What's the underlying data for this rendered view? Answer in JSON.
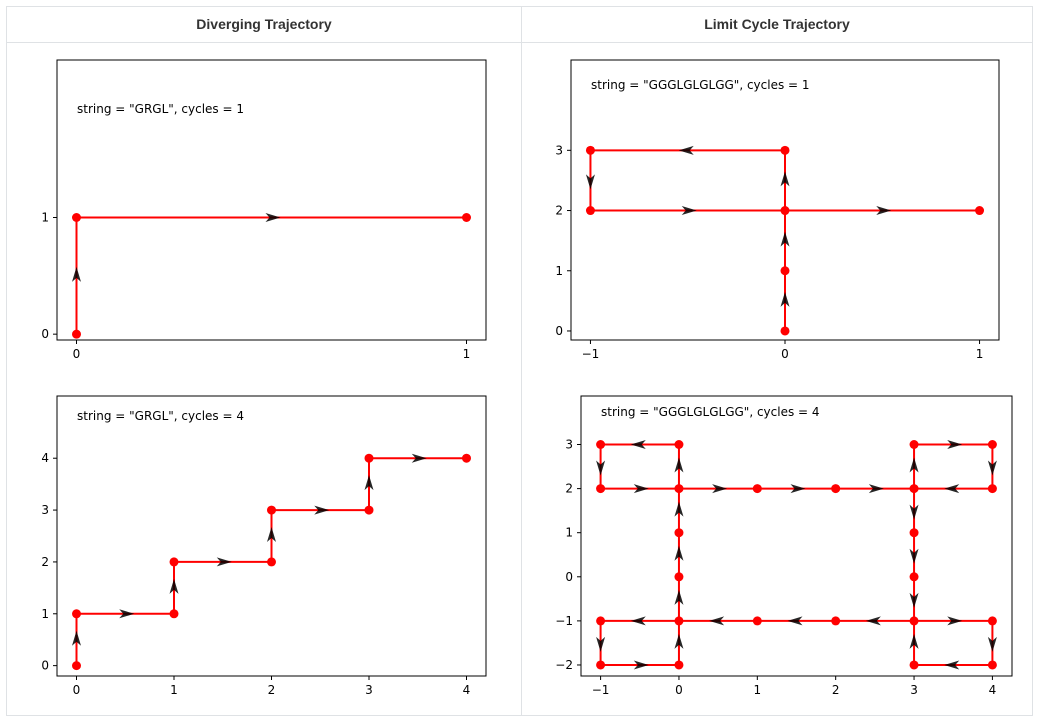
{
  "table": {
    "headers": [
      "Diverging Trajectory",
      "Limit Cycle Trajectory"
    ]
  },
  "colors": {
    "path": "#ff0000",
    "arrow": "#000000"
  },
  "chart_data": [
    {
      "type": "line",
      "annotation": "string = \"GRGL\", cycles = 1",
      "xlabel": "",
      "ylabel": "",
      "xticks": [
        0,
        1
      ],
      "yticks": [
        0,
        1
      ],
      "xlim": [
        -0.05,
        1.05
      ],
      "ylim": [
        -0.05,
        2.35
      ],
      "points": [
        [
          0,
          0
        ],
        [
          0,
          1
        ],
        [
          1,
          1
        ]
      ],
      "arrows": [
        [
          0,
          0,
          0,
          1
        ],
        [
          0,
          1,
          1,
          1
        ]
      ]
    },
    {
      "type": "line",
      "annotation": "string = \"GGGLGLGLGG\", cycles = 1",
      "xlabel": "",
      "ylabel": "",
      "xticks": [
        -1,
        0,
        1
      ],
      "yticks": [
        0,
        1,
        2,
        3
      ],
      "xlim": [
        -1.1,
        1.1
      ],
      "ylim": [
        -0.15,
        4.5
      ],
      "points": [
        [
          0,
          0
        ],
        [
          0,
          1
        ],
        [
          0,
          2
        ],
        [
          0,
          3
        ],
        [
          -1,
          3
        ],
        [
          -1,
          2
        ],
        [
          0,
          2
        ],
        [
          1,
          2
        ]
      ],
      "arrows": [
        [
          0,
          0,
          0,
          1
        ],
        [
          0,
          1,
          0,
          2
        ],
        [
          0,
          2,
          0,
          3
        ],
        [
          0,
          3,
          -1,
          3
        ],
        [
          -1,
          3,
          -1,
          2
        ],
        [
          -1,
          2,
          0,
          2
        ],
        [
          0,
          2,
          1,
          2
        ]
      ]
    },
    {
      "type": "line",
      "annotation": "string = \"GRGL\", cycles = 4",
      "xlabel": "",
      "ylabel": "",
      "xticks": [
        0,
        1,
        2,
        3,
        4
      ],
      "yticks": [
        0,
        1,
        2,
        3,
        4
      ],
      "xlim": [
        -0.2,
        4.2
      ],
      "ylim": [
        -0.2,
        5.2
      ],
      "points": [
        [
          0,
          0
        ],
        [
          0,
          1
        ],
        [
          1,
          1
        ],
        [
          1,
          2
        ],
        [
          2,
          2
        ],
        [
          2,
          3
        ],
        [
          3,
          3
        ],
        [
          3,
          4
        ],
        [
          4,
          4
        ]
      ],
      "arrows": [
        [
          0,
          0,
          0,
          1
        ],
        [
          0,
          1,
          1,
          1
        ],
        [
          1,
          1,
          1,
          2
        ],
        [
          1,
          2,
          2,
          2
        ],
        [
          2,
          2,
          2,
          3
        ],
        [
          2,
          3,
          3,
          3
        ],
        [
          3,
          3,
          3,
          4
        ],
        [
          3,
          4,
          4,
          4
        ]
      ]
    },
    {
      "type": "line",
      "annotation": "string = \"GGGLGLGLGG\", cycles = 4",
      "xlabel": "",
      "ylabel": "",
      "xticks": [
        -1,
        0,
        1,
        2,
        3,
        4
      ],
      "yticks": [
        -2,
        -1,
        0,
        1,
        2,
        3
      ],
      "xlim": [
        -1.25,
        4.25
      ],
      "ylim": [
        -2.25,
        4.1
      ],
      "points": [
        [
          0,
          0
        ],
        [
          0,
          1
        ],
        [
          0,
          2
        ],
        [
          0,
          3
        ],
        [
          -1,
          3
        ],
        [
          -1,
          2
        ],
        [
          0,
          2
        ],
        [
          1,
          2
        ],
        [
          2,
          2
        ],
        [
          3,
          2
        ],
        [
          3,
          3
        ],
        [
          4,
          3
        ],
        [
          4,
          2
        ],
        [
          3,
          2
        ],
        [
          3,
          1
        ],
        [
          3,
          0
        ],
        [
          3,
          -1
        ],
        [
          4,
          -1
        ],
        [
          4,
          -2
        ],
        [
          3,
          -2
        ],
        [
          3,
          -1
        ],
        [
          2,
          -1
        ],
        [
          1,
          -1
        ],
        [
          0,
          -1
        ],
        [
          -1,
          -1
        ],
        [
          -1,
          -2
        ],
        [
          0,
          -2
        ],
        [
          0,
          -1
        ],
        [
          0,
          0
        ]
      ],
      "arrows": [
        [
          0,
          0,
          0,
          1
        ],
        [
          0,
          1,
          0,
          2
        ],
        [
          0,
          2,
          0,
          3
        ],
        [
          0,
          3,
          -1,
          3
        ],
        [
          -1,
          3,
          -1,
          2
        ],
        [
          -1,
          2,
          0,
          2
        ],
        [
          0,
          2,
          1,
          2
        ],
        [
          1,
          2,
          2,
          2
        ],
        [
          2,
          2,
          3,
          2
        ],
        [
          3,
          2,
          3,
          3
        ],
        [
          3,
          3,
          4,
          3
        ],
        [
          4,
          3,
          4,
          2
        ],
        [
          4,
          2,
          3,
          2
        ],
        [
          3,
          2,
          3,
          1
        ],
        [
          3,
          1,
          3,
          0
        ],
        [
          3,
          0,
          3,
          -1
        ],
        [
          3,
          -1,
          4,
          -1
        ],
        [
          4,
          -1,
          4,
          -2
        ],
        [
          4,
          -2,
          3,
          -2
        ],
        [
          3,
          -2,
          3,
          -1
        ],
        [
          3,
          -1,
          2,
          -1
        ],
        [
          2,
          -1,
          1,
          -1
        ],
        [
          1,
          -1,
          0,
          -1
        ],
        [
          0,
          -1,
          -1,
          -1
        ],
        [
          -1,
          -1,
          -1,
          -2
        ],
        [
          -1,
          -2,
          0,
          -2
        ],
        [
          0,
          -2,
          0,
          -1
        ],
        [
          0,
          -1,
          0,
          0
        ]
      ]
    }
  ]
}
